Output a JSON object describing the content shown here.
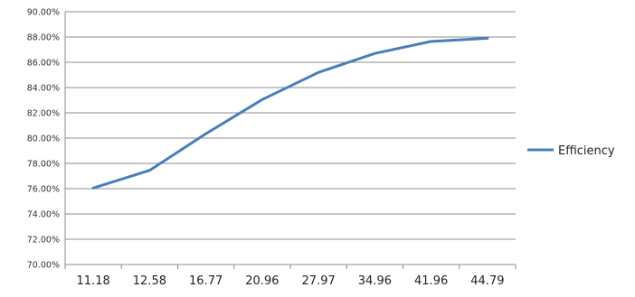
{
  "chart_data": {
    "type": "line",
    "categories": [
      "11.18",
      "12.58",
      "16.77",
      "20.96",
      "27.97",
      "34.96",
      "41.96",
      "44.79"
    ],
    "series": [
      {
        "name": "Efficiency",
        "values": [
          0.7605,
          0.7745,
          0.8035,
          0.8305,
          0.852,
          0.867,
          0.8765,
          0.879
        ]
      }
    ],
    "ylim": [
      0.7,
      0.9
    ],
    "ytick_step": 0.02,
    "y_format": "percent_2dp",
    "grid": true,
    "legend_position": "right",
    "line_color": "#4a7ebb",
    "grid_color": "#8c8c8c"
  }
}
